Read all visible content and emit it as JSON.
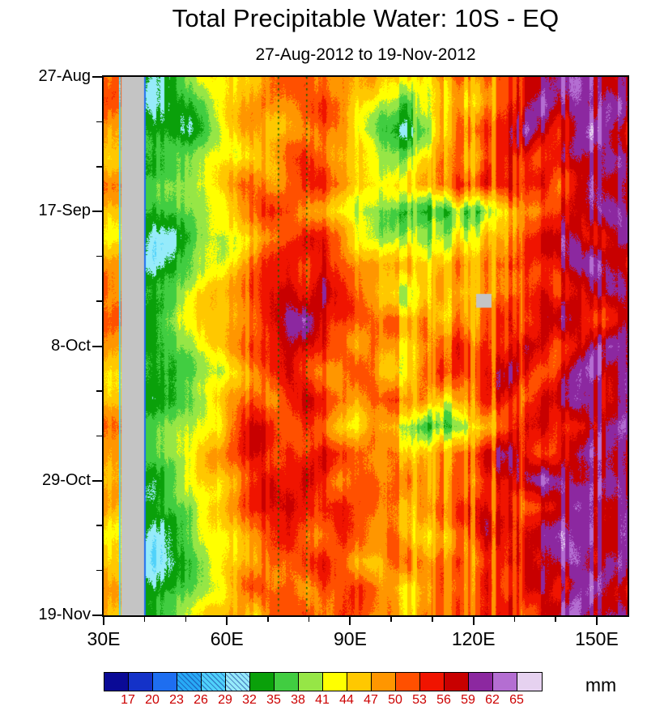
{
  "page": {
    "background": "#ffffff"
  },
  "chart_data": {
    "type": "heatmap",
    "title": "Total Precipitable Water: 10S - EQ",
    "subtitle": "27-Aug-2012 to 19-Nov-2012",
    "units_label": "mm",
    "x_axis": {
      "range_lon": [
        30,
        157.5
      ],
      "major_ticks": [
        {
          "lon": 30,
          "label": "30E"
        },
        {
          "lon": 60,
          "label": "60E"
        },
        {
          "lon": 90,
          "label": "90E"
        },
        {
          "lon": 120,
          "label": "120E"
        },
        {
          "lon": 150,
          "label": "150E"
        }
      ],
      "minor_tick_lons": [
        40,
        50,
        70,
        80,
        100,
        110,
        130,
        140
      ]
    },
    "y_axis": {
      "range_days": [
        0,
        84
      ],
      "major_ticks": [
        {
          "day": 0,
          "label": "27-Aug"
        },
        {
          "day": 21,
          "label": "17-Sep"
        },
        {
          "day": 42,
          "label": "8-Oct"
        },
        {
          "day": 63,
          "label": "29-Oct"
        },
        {
          "day": 84,
          "label": "19-Nov"
        }
      ],
      "minor_tick_days": [
        7,
        14,
        28,
        35,
        49,
        56,
        70,
        77
      ]
    },
    "colorbar": {
      "boundary_labels": [
        "17",
        "20",
        "23",
        "26",
        "29",
        "32",
        "35",
        "38",
        "41",
        "44",
        "47",
        "50",
        "53",
        "56",
        "59",
        "62",
        "65"
      ],
      "colors": [
        "#0a0a96",
        "#1432c8",
        "#1e6ef0",
        "#28aaf5",
        "#50d2fa",
        "#96ebfa",
        "#0aa00a",
        "#41cd41",
        "#96e646",
        "#ffff00",
        "#ffc800",
        "#ff9600",
        "#ff5000",
        "#f01400",
        "#c80000",
        "#8c28a0",
        "#b46ed2",
        "#e6d2f0"
      ],
      "hatched_indices": [
        3,
        4,
        5
      ],
      "label_color": "#cc0000"
    },
    "field": {
      "lon_range": [
        30,
        157.5
      ],
      "day_range": [
        0,
        84
      ],
      "values_mm": [
        [
          50,
          50,
          34,
          33,
          35,
          38,
          41,
          44,
          47,
          47,
          50,
          50,
          53,
          50,
          47,
          44,
          47,
          44,
          47,
          44,
          47,
          50,
          47,
          50,
          53,
          56,
          56,
          59,
          62,
          62,
          59,
          59
        ],
        [
          50,
          50,
          34,
          31,
          33,
          35,
          38,
          44,
          47,
          50,
          50,
          47,
          50,
          53,
          50,
          44,
          41,
          38,
          35,
          41,
          44,
          47,
          44,
          50,
          56,
          59,
          62,
          59,
          62,
          59,
          62,
          59
        ],
        [
          47,
          47,
          34,
          32,
          34,
          33,
          38,
          44,
          47,
          47,
          44,
          47,
          50,
          50,
          47,
          41,
          38,
          35,
          33,
          38,
          44,
          47,
          50,
          53,
          56,
          62,
          59,
          56,
          59,
          62,
          59,
          56
        ],
        [
          47,
          47,
          34,
          34,
          36,
          38,
          41,
          44,
          44,
          47,
          47,
          50,
          53,
          50,
          47,
          44,
          41,
          38,
          41,
          44,
          47,
          50,
          47,
          50,
          53,
          56,
          53,
          56,
          59,
          59,
          62,
          59
        ],
        [
          50,
          50,
          34,
          36,
          39,
          41,
          44,
          47,
          50,
          50,
          47,
          50,
          53,
          53,
          50,
          47,
          44,
          41,
          44,
          47,
          50,
          53,
          50,
          53,
          56,
          53,
          56,
          53,
          56,
          59,
          56,
          59
        ],
        [
          47,
          47,
          34,
          33,
          35,
          38,
          41,
          44,
          47,
          50,
          53,
          53,
          50,
          47,
          44,
          41,
          38,
          35,
          38,
          35,
          33,
          38,
          35,
          38,
          44,
          50,
          53,
          56,
          56,
          59,
          62,
          59
        ],
        [
          44,
          44,
          34,
          31,
          32,
          34,
          38,
          41,
          44,
          47,
          50,
          53,
          56,
          53,
          50,
          44,
          41,
          38,
          41,
          38,
          41,
          44,
          41,
          44,
          47,
          53,
          56,
          59,
          59,
          56,
          59,
          62
        ],
        [
          47,
          47,
          34,
          32,
          33,
          36,
          41,
          44,
          47,
          50,
          53,
          56,
          53,
          56,
          53,
          50,
          47,
          44,
          47,
          44,
          47,
          50,
          47,
          50,
          53,
          56,
          53,
          56,
          59,
          62,
          59,
          56
        ],
        [
          50,
          50,
          34,
          35,
          38,
          41,
          44,
          47,
          50,
          53,
          56,
          59,
          56,
          59,
          53,
          50,
          47,
          44,
          41,
          44,
          47,
          44,
          44,
          47,
          50,
          53,
          56,
          53,
          56,
          59,
          62,
          59
        ],
        [
          50,
          50,
          34,
          36,
          39,
          41,
          44,
          47,
          50,
          53,
          56,
          59,
          62,
          56,
          53,
          50,
          47,
          50,
          47,
          50,
          47,
          50,
          47,
          53,
          56,
          53,
          56,
          59,
          56,
          53,
          56,
          59
        ],
        [
          47,
          47,
          34,
          34,
          37,
          40,
          44,
          47,
          50,
          53,
          56,
          59,
          56,
          53,
          50,
          47,
          50,
          47,
          44,
          47,
          50,
          53,
          50,
          53,
          56,
          59,
          56,
          53,
          56,
          59,
          62,
          59
        ],
        [
          44,
          44,
          34,
          32,
          33,
          36,
          41,
          44,
          47,
          50,
          53,
          56,
          53,
          50,
          47,
          50,
          47,
          44,
          47,
          50,
          53,
          50,
          53,
          56,
          59,
          56,
          53,
          56,
          59,
          62,
          59,
          62
        ],
        [
          47,
          47,
          34,
          33,
          35,
          38,
          41,
          47,
          50,
          53,
          50,
          53,
          56,
          53,
          50,
          47,
          50,
          53,
          50,
          47,
          44,
          47,
          50,
          53,
          56,
          53,
          56,
          59,
          62,
          59,
          56,
          59
        ],
        [
          50,
          50,
          34,
          35,
          38,
          41,
          44,
          47,
          53,
          56,
          53,
          50,
          53,
          50,
          47,
          44,
          47,
          44,
          41,
          35,
          38,
          35,
          44,
          47,
          53,
          56,
          59,
          56,
          53,
          56,
          59,
          62
        ],
        [
          50,
          50,
          34,
          36,
          39,
          42,
          47,
          50,
          53,
          56,
          53,
          56,
          53,
          56,
          53,
          50,
          47,
          50,
          47,
          44,
          47,
          50,
          53,
          56,
          59,
          56,
          53,
          56,
          59,
          62,
          59,
          56
        ],
        [
          47,
          47,
          34,
          34,
          37,
          40,
          44,
          47,
          50,
          53,
          56,
          53,
          56,
          53,
          50,
          53,
          50,
          47,
          50,
          47,
          50,
          53,
          50,
          53,
          56,
          59,
          62,
          59,
          56,
          59,
          62,
          59
        ],
        [
          47,
          47,
          34,
          33,
          35,
          38,
          44,
          47,
          50,
          53,
          56,
          59,
          56,
          53,
          56,
          53,
          50,
          47,
          44,
          47,
          50,
          53,
          56,
          53,
          56,
          53,
          56,
          59,
          62,
          59,
          56,
          59
        ],
        [
          44,
          44,
          34,
          31,
          33,
          36,
          41,
          44,
          47,
          50,
          53,
          56,
          53,
          50,
          53,
          50,
          47,
          50,
          47,
          44,
          47,
          50,
          53,
          56,
          53,
          56,
          59,
          62,
          59,
          62,
          59,
          62
        ],
        [
          44,
          44,
          34,
          30,
          32,
          34,
          38,
          44,
          47,
          50,
          53,
          50,
          53,
          56,
          53,
          47,
          44,
          47,
          50,
          47,
          50,
          53,
          50,
          53,
          56,
          59,
          56,
          59,
          62,
          59,
          62,
          59
        ],
        [
          47,
          47,
          34,
          32,
          34,
          37,
          41,
          44,
          50,
          53,
          50,
          53,
          50,
          53,
          50,
          53,
          50,
          47,
          44,
          47,
          50,
          47,
          50,
          56,
          53,
          56,
          59,
          56,
          59,
          62,
          59,
          56
        ],
        [
          47,
          47,
          34,
          34,
          36,
          39,
          44,
          47,
          50,
          47,
          53,
          50,
          53,
          50,
          53,
          50,
          47,
          50,
          47,
          50,
          47,
          50,
          53,
          53,
          56,
          53,
          56,
          59,
          62,
          59,
          62,
          59
        ]
      ],
      "missing_color": "#c4c4c4",
      "missing_regions": [
        {
          "lon": [
            34.2,
            39.7
          ],
          "day": [
            0,
            84
          ]
        },
        {
          "lon": [
            120.7,
            124.4
          ],
          "day": [
            33.8,
            36.0
          ]
        }
      ],
      "vertical_streaks": [
        {
          "lon": 39.95,
          "width": 0.6,
          "value": 20,
          "mix": 0.9
        },
        {
          "lon": 33.8,
          "width": 0.45,
          "value": 25,
          "mix": 0.85
        },
        {
          "lon": 105.8,
          "width": 0.9,
          "value": 43,
          "mix": 0.55
        },
        {
          "lon": 110.4,
          "width": 0.8,
          "value": 44,
          "mix": 0.5
        },
        {
          "lon": 119.9,
          "width": 1.0,
          "value": 43,
          "mix": 0.5
        },
        {
          "lon": 124.9,
          "width": 0.9,
          "value": 44,
          "mix": 0.45
        },
        {
          "lon": 131.6,
          "width": 0.7,
          "value": 47,
          "mix": 0.4
        }
      ],
      "reference_lines": {
        "lons": [
          72.6,
          79.5
        ],
        "color": "#006400",
        "style": "dotted"
      }
    }
  }
}
